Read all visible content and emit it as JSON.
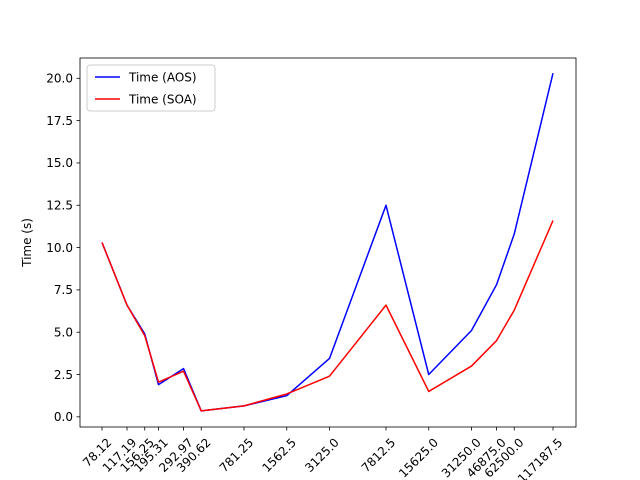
{
  "chart_data": {
    "type": "line",
    "title": "",
    "xlabel": "",
    "ylabel": "Time (s)",
    "x_tick_labels": [
      "78.12",
      "117.19",
      "156.25",
      "195.31",
      "292.97",
      "390.62",
      "781.25",
      "1562.5",
      "3125.0",
      "7812.5",
      "15625.0",
      "31250.0",
      "46875.0",
      "62500.0",
      "117187.5"
    ],
    "x": [
      78.125,
      117.1875,
      156.25,
      195.3125,
      292.96875,
      390.625,
      781.25,
      1562.5,
      3125.0,
      7812.5,
      15625.0,
      31250.0,
      46875.0,
      62500.0,
      117187.5
    ],
    "x_scale": "log",
    "ylim": [
      -0.6,
      21.2
    ],
    "y_ticks": [
      0.0,
      2.5,
      5.0,
      7.5,
      10.0,
      12.5,
      15.0,
      17.5,
      20.0
    ],
    "y_tick_labels": [
      "0.0",
      "2.5",
      "5.0",
      "7.5",
      "10.0",
      "12.5",
      "15.0",
      "17.5",
      "20.0"
    ],
    "series": [
      {
        "name": "Time (AOS)",
        "color": "#0000ff",
        "values": [
          10.3,
          6.6,
          4.9,
          1.9,
          2.85,
          0.35,
          0.65,
          1.25,
          3.45,
          12.5,
          2.5,
          5.1,
          7.8,
          10.8,
          20.3
        ]
      },
      {
        "name": "Time (SOA)",
        "color": "#ff0000",
        "values": [
          10.3,
          6.6,
          4.8,
          2.05,
          2.7,
          0.35,
          0.65,
          1.35,
          2.4,
          6.6,
          1.5,
          3.0,
          4.5,
          6.3,
          11.6
        ]
      }
    ],
    "legend_position": "top-left",
    "grid": false
  }
}
